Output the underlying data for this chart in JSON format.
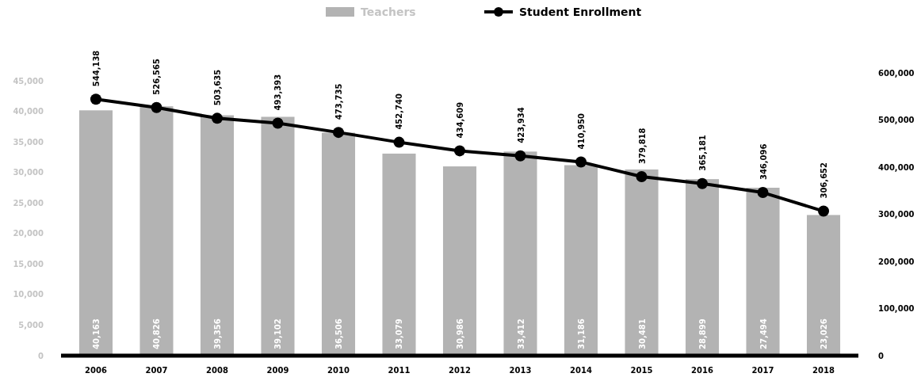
{
  "chart_data": {
    "type": "bar",
    "categories": [
      "2006",
      "2007",
      "2008",
      "2009",
      "2010",
      "2011",
      "2012",
      "2013",
      "2014",
      "2015",
      "2016",
      "2017",
      "2018"
    ],
    "series": [
      {
        "name": "Teachers",
        "color": "#b3b3b3",
        "values": [
          40163,
          40826,
          39356,
          39102,
          36506,
          33079,
          30986,
          33412,
          31186,
          30481,
          28899,
          27494,
          23026
        ],
        "value_labels": [
          "40,163",
          "40,826",
          "39,356",
          "39,102",
          "36,506",
          "33,079",
          "30,986",
          "33,412",
          "31,186",
          "30,481",
          "28,899",
          "27,494",
          "23,026"
        ]
      },
      {
        "name": "Student Enrollment",
        "type": "line",
        "axis": "y2",
        "color": "#000000",
        "marker": "circle",
        "values": [
          544138,
          526565,
          503635,
          493393,
          473735,
          452740,
          434609,
          423934,
          410950,
          379818,
          365181,
          346096,
          306652
        ],
        "value_labels": [
          "544,138",
          "526,565",
          "503,635",
          "493,393",
          "473,735",
          "452,740",
          "434,609",
          "423,934",
          "410,950",
          "379,818",
          "365,181",
          "346,096",
          "306,652"
        ]
      }
    ],
    "ylim": [
      0,
      45000
    ],
    "yticks": [
      {
        "value": 0,
        "label": "0"
      },
      {
        "value": 5000,
        "label": "5,000"
      },
      {
        "value": 10000,
        "label": "10,000"
      },
      {
        "value": 15000,
        "label": "15,000"
      },
      {
        "value": 20000,
        "label": "20,000"
      },
      {
        "value": 25000,
        "label": "25,000"
      },
      {
        "value": 30000,
        "label": "30,000"
      },
      {
        "value": 35000,
        "label": "35,000"
      },
      {
        "value": 40000,
        "label": "40,000"
      },
      {
        "value": 45000,
        "label": "45,000"
      }
    ],
    "y2lim": [
      0,
      600000
    ],
    "y2ticks": [
      {
        "value": 0,
        "label": "0"
      },
      {
        "value": 100000,
        "label": "100,000"
      },
      {
        "value": 200000,
        "label": "200,000"
      },
      {
        "value": 300000,
        "label": "300,000"
      },
      {
        "value": 400000,
        "label": "400,000"
      },
      {
        "value": 500000,
        "label": "500,000"
      },
      {
        "value": 600000,
        "label": "600,000"
      }
    ],
    "legend": "top",
    "grid": false
  }
}
